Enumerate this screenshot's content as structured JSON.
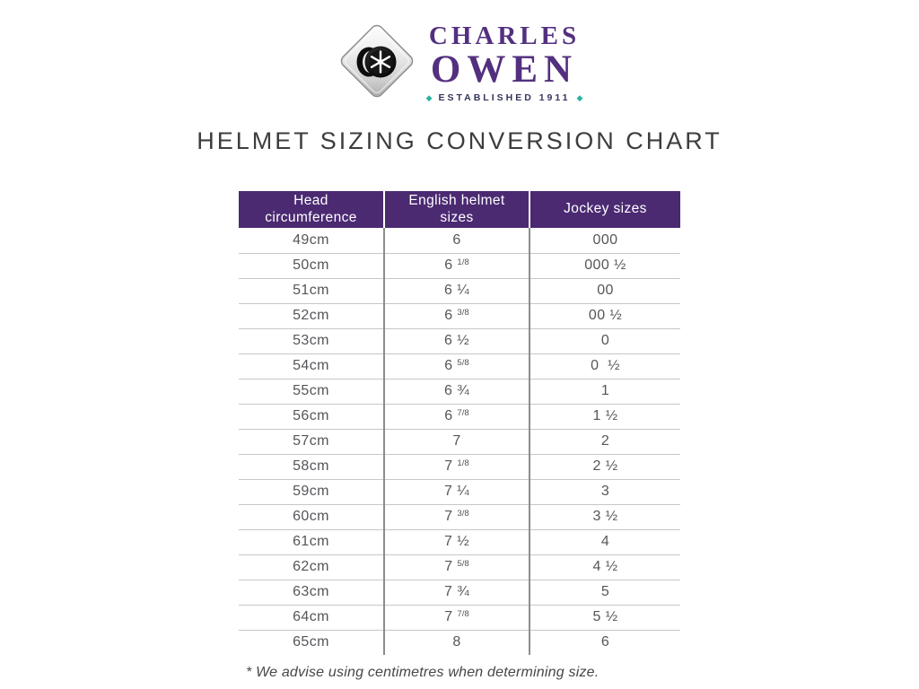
{
  "logo": {
    "name_line1": "CHARLES",
    "name_line2": "OWEN",
    "established": "ESTABLISHED 1911",
    "diamond_glyph": "◆",
    "icon": "charles-owen-helmet-diamond-icon"
  },
  "title": "HELMET SIZING CONVERSION CHART",
  "chart_data": {
    "type": "table",
    "title": "HELMET SIZING CONVERSION CHART",
    "columns": [
      "Head circumference",
      "English helmet sizes",
      "Jockey sizes"
    ],
    "rows": [
      [
        "49cm",
        "6",
        "000"
      ],
      [
        "50cm",
        "6 1/8",
        "000 1/2"
      ],
      [
        "51cm",
        "6 1/4",
        "00"
      ],
      [
        "52cm",
        "6 3/8",
        "00 1/2"
      ],
      [
        "53cm",
        "6 1/2",
        "0"
      ],
      [
        "54cm",
        "6 5/8",
        "0  1/2"
      ],
      [
        "55cm",
        "6 3/4",
        "1"
      ],
      [
        "56cm",
        "6 7/8",
        "1 1/2"
      ],
      [
        "57cm",
        "7",
        "2"
      ],
      [
        "58cm",
        "7 1/8",
        "2 1/2"
      ],
      [
        "59cm",
        "7 1/4",
        "3"
      ],
      [
        "60cm",
        "7 3/8",
        "3 1/2"
      ],
      [
        "61cm",
        "7 1/2",
        "4"
      ],
      [
        "62cm",
        "7 5/8",
        "4 1/2"
      ],
      [
        "63cm",
        "7 3/4",
        "5"
      ],
      [
        "64cm",
        "7 7/8",
        "5 1/2"
      ],
      [
        "65cm",
        "8",
        "6"
      ]
    ],
    "footnote": "* We advise using centimetres when determining size."
  },
  "colors": {
    "header_purple": "#4b2a72",
    "logo_purple": "#53307f",
    "established_teal": "#29b3a2",
    "title_gray": "#3d3d3d",
    "body_text_gray": "#55565a"
  }
}
